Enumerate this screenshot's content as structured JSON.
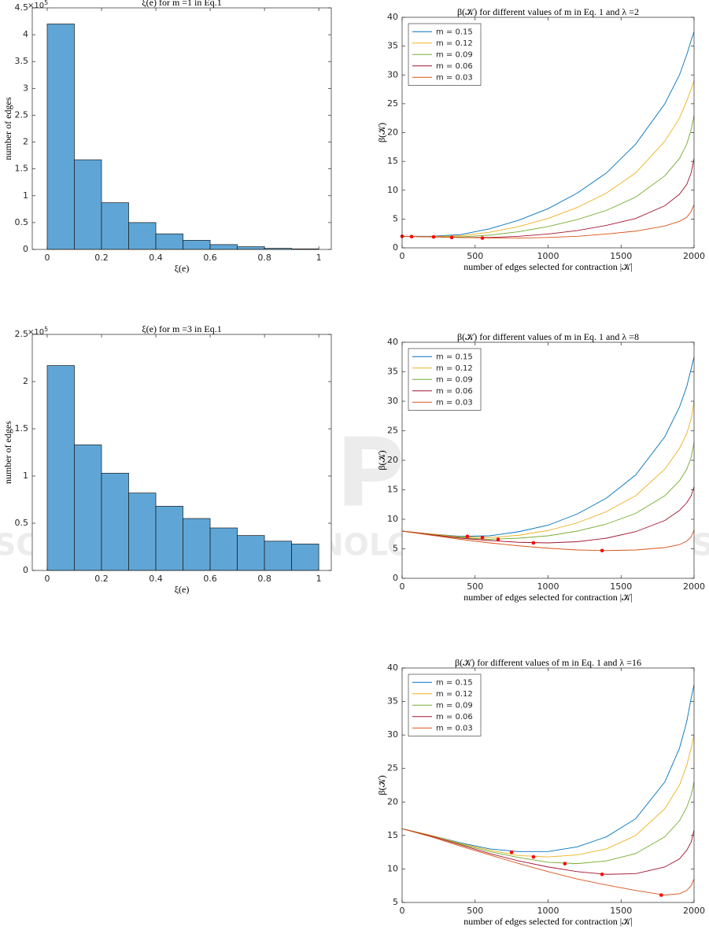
{
  "watermark": [
    "SCITEPRESS",
    "SCIENCE AND TECHNOLOGY PUBLICATIONS"
  ],
  "chart_data": [
    {
      "type": "histogram",
      "title": "ξ(e) for m =1 in Eq.1",
      "xlabel": "ξ(e)",
      "ylabel": "number of edges",
      "y_multiplier": "×10",
      "y_exponent": "5",
      "color": "#5fa6d6",
      "bins": [
        0,
        0.1,
        0.2,
        0.3,
        0.4,
        0.5,
        0.6,
        0.7,
        0.8,
        0.9,
        1
      ],
      "values": [
        4.2,
        1.67,
        0.87,
        0.5,
        0.29,
        0.17,
        0.09,
        0.05,
        0.02,
        0.01
      ],
      "xlim": [
        -0.055,
        1.046
      ],
      "xticks": [
        0,
        0.2,
        0.4,
        0.6,
        0.8,
        1
      ],
      "ylim": [
        0,
        4.5
      ],
      "yticks": [
        0,
        0.5,
        1,
        1.5,
        2,
        2.5,
        3,
        3.5,
        4,
        4.5
      ]
    },
    {
      "type": "histogram",
      "title": "ξ(e) for m =3 in Eq.1",
      "xlabel": "ξ(e)",
      "ylabel": "number of edges",
      "y_multiplier": "×10",
      "y_exponent": "5",
      "color": "#5fa6d6",
      "bins": [
        0,
        0.1,
        0.2,
        0.3,
        0.4,
        0.5,
        0.6,
        0.7,
        0.8,
        0.9,
        1
      ],
      "values": [
        2.17,
        1.33,
        1.03,
        0.82,
        0.68,
        0.55,
        0.45,
        0.37,
        0.31,
        0.28
      ],
      "xlim": [
        -0.055,
        1.046
      ],
      "xticks": [
        0,
        0.2,
        0.4,
        0.6,
        0.8,
        1
      ],
      "ylim": [
        0,
        2.5
      ],
      "yticks": [
        0,
        0.5,
        1,
        1.5,
        2,
        2.5
      ]
    },
    {
      "type": "line",
      "title": "β(𝒦) for different values of m in Eq. 1 and λ =2",
      "xlabel": "number of edges selected for contraction |𝒦|",
      "ylabel": "β(𝒦)",
      "legend": "upper left",
      "marker_color": "#ff0000",
      "x": [
        0,
        200,
        400,
        600,
        800,
        1000,
        1200,
        1400,
        1600,
        1800,
        1900,
        1950,
        1980,
        2000
      ],
      "series": [
        {
          "name": "m = 0.15",
          "color": "#0072bd",
          "values": [
            2,
            2,
            2.3,
            3.3,
            4.8,
            6.8,
            9.5,
            13,
            18,
            25,
            30,
            33.5,
            36,
            37.5
          ],
          "min_x": 0,
          "min_y": 2
        },
        {
          "name": "m = 0.12",
          "color": "#edb120",
          "values": [
            2,
            1.95,
            2.1,
            2.7,
            3.7,
            5.1,
            7,
            9.5,
            13,
            18.5,
            22.5,
            25.5,
            27.5,
            29
          ],
          "min_x": 65,
          "min_y": 1.95
        },
        {
          "name": "m = 0.09",
          "color": "#77ac30",
          "values": [
            2,
            1.9,
            1.9,
            2.2,
            2.8,
            3.7,
            4.9,
            6.5,
            8.8,
            12.5,
            15.5,
            18,
            20.5,
            23
          ],
          "min_x": 216,
          "min_y": 1.9
        },
        {
          "name": "m = 0.06",
          "color": "#a2142f",
          "values": [
            2,
            1.9,
            1.8,
            1.8,
            2,
            2.4,
            3,
            3.9,
            5.1,
            7.3,
            9.3,
            11,
            13,
            15.5
          ],
          "min_x": 340,
          "min_y": 1.8
        },
        {
          "name": "m = 0.03",
          "color": "#d95319",
          "values": [
            2,
            1.9,
            1.8,
            1.7,
            1.7,
            1.8,
            2,
            2.4,
            2.9,
            3.8,
            4.6,
            5.3,
            6.3,
            7.5
          ],
          "min_x": 550,
          "min_y": 1.7
        }
      ],
      "xlim": [
        0,
        2000
      ],
      "xticks": [
        0,
        500,
        1000,
        1500,
        2000
      ],
      "ylim": [
        0,
        40
      ],
      "yticks": [
        0,
        5,
        10,
        15,
        20,
        25,
        30,
        35,
        40
      ]
    },
    {
      "type": "line",
      "title": "β(𝒦) for different values of m in Eq. 1 and λ =8",
      "xlabel": "number of edges selected for contraction |𝒦|",
      "ylabel": "β(𝒦)",
      "legend": "upper left",
      "marker_color": "#ff0000",
      "x": [
        0,
        200,
        400,
        600,
        800,
        1000,
        1200,
        1400,
        1600,
        1800,
        1900,
        1950,
        1980,
        2000
      ],
      "series": [
        {
          "name": "m = 0.15",
          "color": "#0072bd",
          "values": [
            8,
            7.5,
            7.1,
            7.2,
            7.9,
            9,
            10.9,
            13.6,
            17.5,
            24,
            29,
            32.5,
            35.5,
            37.5
          ],
          "min_x": 447,
          "min_y": 7.1
        },
        {
          "name": "m = 0.12",
          "color": "#edb120",
          "values": [
            8,
            7.5,
            7,
            6.9,
            7.3,
            8.1,
            9.4,
            11.3,
            14,
            18.5,
            22,
            24.5,
            27,
            30
          ],
          "min_x": 550,
          "min_y": 6.9
        },
        {
          "name": "m = 0.09",
          "color": "#77ac30",
          "values": [
            8,
            7.4,
            6.9,
            6.6,
            6.8,
            7.2,
            8,
            9.2,
            11,
            14,
            16.5,
            18.5,
            20.5,
            23
          ],
          "min_x": 658,
          "min_y": 6.6
        },
        {
          "name": "m = 0.06",
          "color": "#a2142f",
          "values": [
            8,
            7.4,
            6.8,
            6.4,
            6.1,
            6,
            6.2,
            6.8,
            7.9,
            9.8,
            11.5,
            12.8,
            14,
            15.5
          ],
          "min_x": 900,
          "min_y": 6
        },
        {
          "name": "m = 0.03",
          "color": "#d95319",
          "values": [
            8,
            7.3,
            6.6,
            6,
            5.5,
            5.1,
            4.8,
            4.7,
            4.8,
            5.2,
            5.7,
            6.3,
            7,
            8.2
          ],
          "min_x": 1370,
          "min_y": 4.7
        }
      ],
      "xlim": [
        0,
        2000
      ],
      "xticks": [
        0,
        500,
        1000,
        1500,
        2000
      ],
      "ylim": [
        0,
        40
      ],
      "yticks": [
        0,
        5,
        10,
        15,
        20,
        25,
        30,
        35,
        40
      ]
    },
    {
      "type": "line",
      "title": "β(𝒦) for different values of m in Eq. 1 and λ =16",
      "xlabel": "number of edges selected for contraction |𝒦|",
      "ylabel": "β(𝒦)",
      "legend": "upper left",
      "marker_color": "#ff0000",
      "x": [
        0,
        200,
        400,
        600,
        800,
        1000,
        1200,
        1400,
        1600,
        1800,
        1900,
        1950,
        1980,
        2000
      ],
      "series": [
        {
          "name": "m = 0.15",
          "color": "#0072bd",
          "values": [
            16,
            15,
            13.9,
            13,
            12.6,
            12.6,
            13.3,
            14.8,
            17.5,
            23,
            28,
            32,
            35.5,
            37.5
          ],
          "min_x": 750,
          "min_y": 12.5
        },
        {
          "name": "m = 0.12",
          "color": "#edb120",
          "values": [
            16,
            15,
            13.8,
            12.8,
            12,
            11.8,
            12.1,
            13,
            15,
            19,
            22.5,
            25.5,
            28,
            30
          ],
          "min_x": 900,
          "min_y": 11.8
        },
        {
          "name": "m = 0.09",
          "color": "#77ac30",
          "values": [
            16,
            14.9,
            13.7,
            12.6,
            11.7,
            11,
            10.8,
            11.2,
            12.3,
            14.8,
            17.2,
            19.2,
            21,
            23
          ],
          "min_x": 1115,
          "min_y": 10.8
        },
        {
          "name": "m = 0.06",
          "color": "#a2142f",
          "values": [
            16,
            14.9,
            13.6,
            12.3,
            11.2,
            10.3,
            9.6,
            9.2,
            9.3,
            10.3,
            11.5,
            12.8,
            14,
            15.8
          ],
          "min_x": 1370,
          "min_y": 9.2
        },
        {
          "name": "m = 0.03",
          "color": "#d95319",
          "values": [
            16,
            14.8,
            13.4,
            12.1,
            10.8,
            9.6,
            8.5,
            7.6,
            6.8,
            6.1,
            6.3,
            6.8,
            7.5,
            8.5
          ],
          "min_x": 1775,
          "min_y": 6.1
        }
      ],
      "xlim": [
        0,
        2000
      ],
      "xticks": [
        0,
        500,
        1000,
        1500,
        2000
      ],
      "ylim": [
        5,
        40
      ],
      "yticks": [
        5,
        10,
        15,
        20,
        25,
        30,
        35,
        40
      ]
    }
  ]
}
